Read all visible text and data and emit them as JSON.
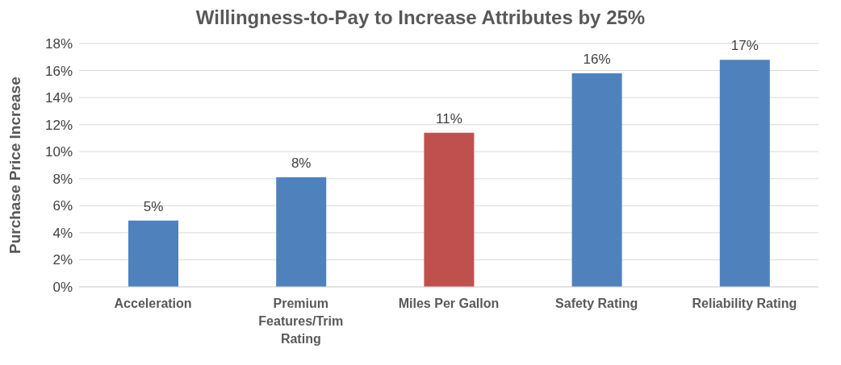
{
  "chart_data": {
    "type": "bar",
    "title": "Willingness-to-Pay to Increase Attributes by 25%",
    "ylabel": "Purchase Price Increase",
    "categories": [
      "Acceleration",
      "Premium Features/Trim Rating",
      "Miles Per Gallon",
      "Safety Rating",
      "Reliability Rating"
    ],
    "values": [
      4.9,
      8.1,
      11.4,
      15.8,
      16.8
    ],
    "colors": [
      "#4f81bd",
      "#4f81bd",
      "#c0504d",
      "#4f81bd",
      "#4f81bd"
    ],
    "value_labels": [
      "5%",
      "8%",
      "11%",
      "16%",
      "17%"
    ],
    "ylim": [
      0,
      18
    ],
    "yticks": [
      {
        "value": 0,
        "label": "0%"
      },
      {
        "value": 2,
        "label": "2%"
      },
      {
        "value": 4,
        "label": "4%"
      },
      {
        "value": 6,
        "label": "6%"
      },
      {
        "value": 8,
        "label": "8%"
      },
      {
        "value": 10,
        "label": "10%"
      },
      {
        "value": 12,
        "label": "12%"
      },
      {
        "value": 14,
        "label": "14%"
      },
      {
        "value": 16,
        "label": "16%"
      },
      {
        "value": 18,
        "label": "18%"
      }
    ],
    "grid": "y"
  }
}
